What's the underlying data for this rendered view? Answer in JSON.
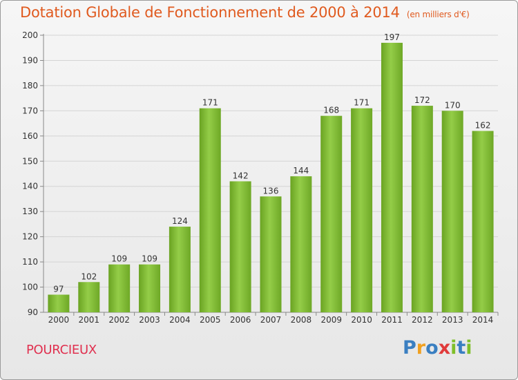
{
  "header": {
    "title": "Dotation Globale de Fonctionnement de 2000 à 2014",
    "units": "(en milliers d'€)"
  },
  "footer": {
    "commune": "POURCIEUX",
    "brand_letters": [
      "P",
      "r",
      "o",
      "x",
      "i",
      "t",
      "i"
    ],
    "brand_colors": [
      "#3a7fc1",
      "#f0a020",
      "#3a7fc1",
      "#e03a3a",
      "#7fbf2a",
      "#3a7fc1",
      "#7fbf2a"
    ]
  },
  "chart_data": {
    "type": "bar",
    "categories": [
      "2000",
      "2001",
      "2002",
      "2003",
      "2004",
      "2005",
      "2006",
      "2007",
      "2008",
      "2009",
      "2010",
      "2011",
      "2012",
      "2013",
      "2014"
    ],
    "values": [
      97,
      102,
      109,
      109,
      124,
      171,
      142,
      136,
      144,
      168,
      171,
      197,
      172,
      170,
      162
    ],
    "ylim": [
      90,
      200
    ],
    "yticks": [
      90,
      100,
      110,
      120,
      130,
      140,
      150,
      160,
      170,
      180,
      190,
      200
    ],
    "grid": true,
    "bar_color": "#7cb82f",
    "title": "Dotation Globale de Fonctionnement de 2000 à 2014",
    "xlabel": "",
    "ylabel": ""
  }
}
